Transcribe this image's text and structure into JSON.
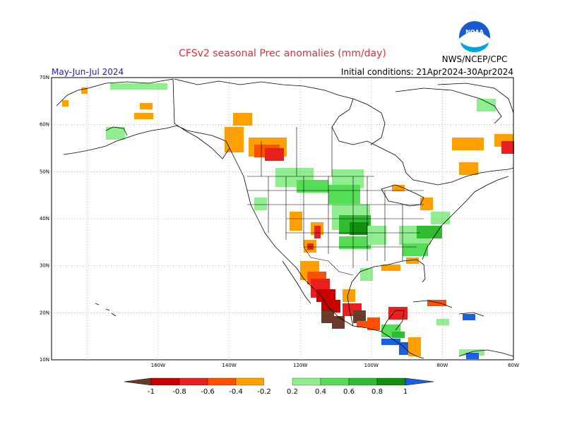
{
  "header": {
    "title": "CFSv2 seasonal Prec anomalies (mm/day)",
    "season": "May-Jun-Jul 2024",
    "initial_conditions": "Initial conditions: 21Apr2024-30Apr2024",
    "agency": "NWS/NCEP/CPC",
    "logo_text": "NOAA"
  },
  "map": {
    "lon_range": [
      -190,
      -60
    ],
    "lat_range": [
      10,
      70
    ],
    "lat_ticks": [
      "10N",
      "20N",
      "30N",
      "40N",
      "50N",
      "60N",
      "70N"
    ],
    "lon_ticks": [
      "160W",
      "140W",
      "120W",
      "100W",
      "80W",
      "60W"
    ],
    "grid": true
  },
  "colorbar": {
    "labels": [
      "-1",
      "-0.8",
      "-0.6",
      "-0.4",
      "-0.2",
      "0.2",
      "0.4",
      "0.6",
      "0.8",
      "1"
    ],
    "colors": [
      "#6b3a2a",
      "#c80000",
      "#e82020",
      "#ff5000",
      "#ffa000",
      "#ffffff",
      "#90ee90",
      "#55dd55",
      "#30bb30",
      "#109010",
      "#1a60e0"
    ]
  },
  "colors": {
    "wet_light": "#90ee90",
    "wet_mid": "#55dd55",
    "wet_strong": "#30bb30",
    "wet_very": "#109010",
    "wet_extreme": "#1a60e0",
    "dry_light": "#ffa000",
    "dry_mid": "#ff5000",
    "dry_strong": "#e82020",
    "dry_very": "#c80000",
    "dry_extreme": "#6b3a2a"
  }
}
